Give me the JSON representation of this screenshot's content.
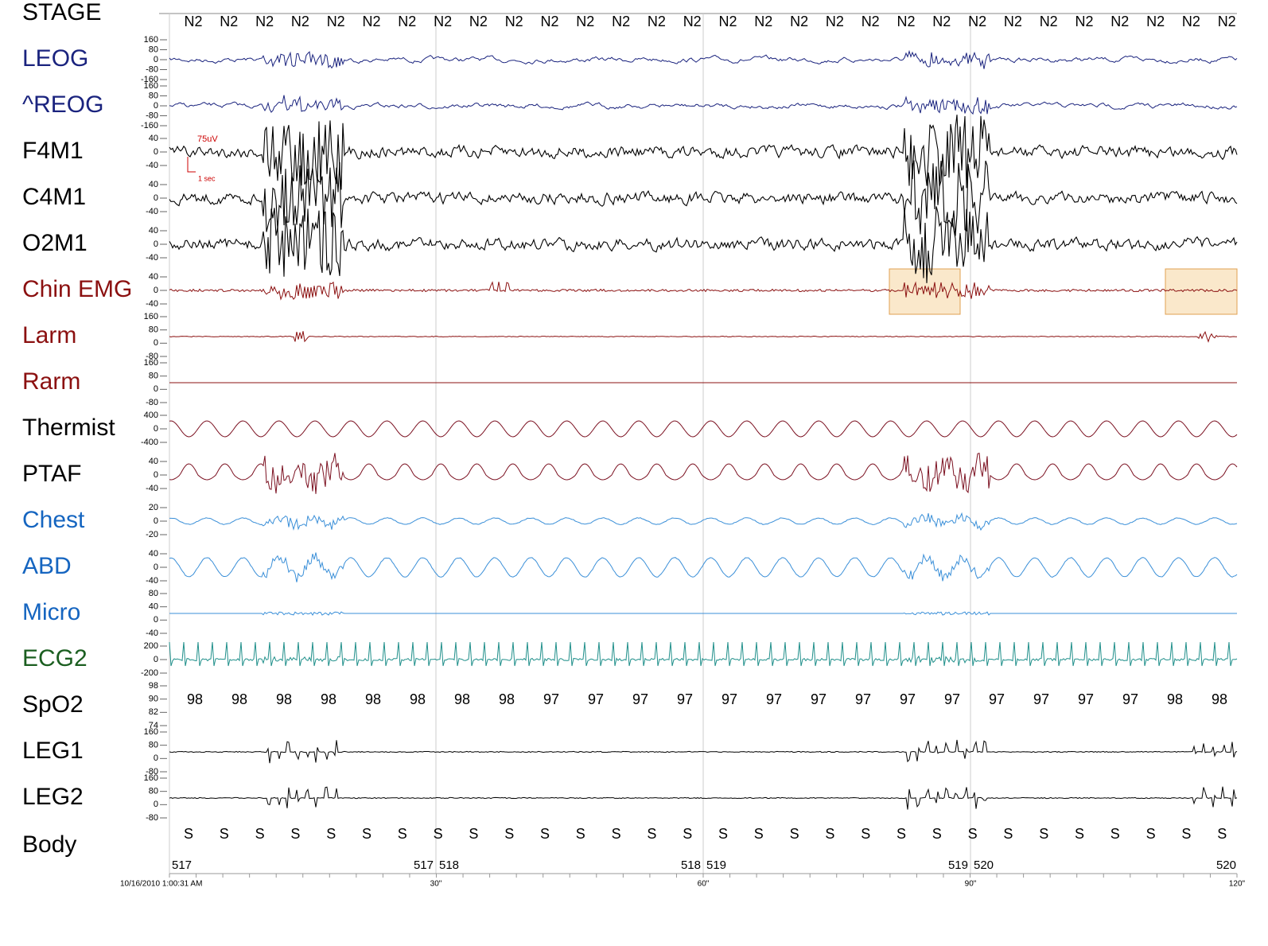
{
  "stage_row": {
    "label": "STAGE",
    "stages": [
      "N2",
      "N2",
      "N2",
      "N2",
      "N2",
      "N2",
      "N2",
      "N2",
      "N2",
      "N2",
      "N2",
      "N2",
      "N2",
      "N2",
      "N2",
      "N2",
      "N2",
      "N2",
      "N2",
      "N2",
      "N2",
      "N2",
      "N2",
      "N2",
      "N2",
      "N2",
      "N2",
      "N2",
      "N2",
      "N2"
    ]
  },
  "channels": [
    {
      "label": "LEOG",
      "color": "#1a237e",
      "scale": [
        160,
        80,
        0,
        -80,
        -160
      ]
    },
    {
      "label": "^REOG",
      "color": "#1a237e",
      "scale": [
        160,
        80,
        0,
        -80,
        -160
      ]
    },
    {
      "label": "F4M1",
      "color": "#000000",
      "scale": [
        40,
        0,
        -40
      ]
    },
    {
      "label": "C4M1",
      "color": "#000000",
      "scale": [
        40,
        0,
        -40
      ]
    },
    {
      "label": "O2M1",
      "color": "#000000",
      "scale": [
        40,
        0,
        -40
      ]
    },
    {
      "label": "Chin EMG",
      "color": "#8b1010",
      "scale": [
        40,
        0,
        -40
      ]
    },
    {
      "label": "Larm",
      "color": "#8b1010",
      "scale": [
        160,
        80,
        0,
        -80
      ]
    },
    {
      "label": "Rarm",
      "color": "#8b1010",
      "scale": [
        160,
        80,
        0,
        -80
      ]
    },
    {
      "label": "Thermist",
      "color": "#000000",
      "scale": [
        400,
        0,
        -400
      ]
    },
    {
      "label": "PTAF",
      "color": "#000000",
      "scale": [
        40,
        0,
        -40
      ]
    },
    {
      "label": "Chest",
      "color": "#1565c0",
      "scale": [
        20,
        0,
        -20
      ]
    },
    {
      "label": "ABD",
      "color": "#1565c0",
      "scale": [
        40,
        0,
        -40
      ]
    },
    {
      "label": "Micro",
      "color": "#1565c0",
      "scale": [
        80,
        40,
        0,
        -40
      ]
    },
    {
      "label": "ECG2",
      "color": "#1b5e20",
      "scale": [
        200,
        0,
        -200
      ]
    },
    {
      "label": "SpO2",
      "color": "#000000",
      "scale": [
        98,
        90,
        82,
        74
      ]
    },
    {
      "label": "LEG1",
      "color": "#000000",
      "scale": [
        160,
        80,
        0,
        -80
      ]
    },
    {
      "label": "LEG2",
      "color": "#000000",
      "scale": [
        160,
        80,
        0,
        -80
      ]
    }
  ],
  "spo2_values": [
    98,
    98,
    98,
    98,
    98,
    98,
    98,
    98,
    97,
    97,
    97,
    97,
    97,
    97,
    97,
    97,
    97,
    97,
    97,
    97,
    97,
    97,
    98,
    98
  ],
  "body_row": {
    "label": "Body",
    "positions": [
      "S",
      "S",
      "S",
      "S",
      "S",
      "S",
      "S",
      "S",
      "S",
      "S",
      "S",
      "S",
      "S",
      "S",
      "S",
      "S",
      "S",
      "S",
      "S",
      "S",
      "S",
      "S",
      "S",
      "S",
      "S",
      "S",
      "S",
      "S",
      "S",
      "S"
    ]
  },
  "calibration": {
    "amplitude": "75uV",
    "time": "1 sec"
  },
  "epochs": [
    "517",
    "517",
    "518",
    "518",
    "519",
    "519",
    "520",
    "520"
  ],
  "time_axis": {
    "start": "10/16/2010 1:00:31 AM",
    "marks": [
      "30\"",
      "60\"",
      "90\"",
      "120\""
    ]
  }
}
